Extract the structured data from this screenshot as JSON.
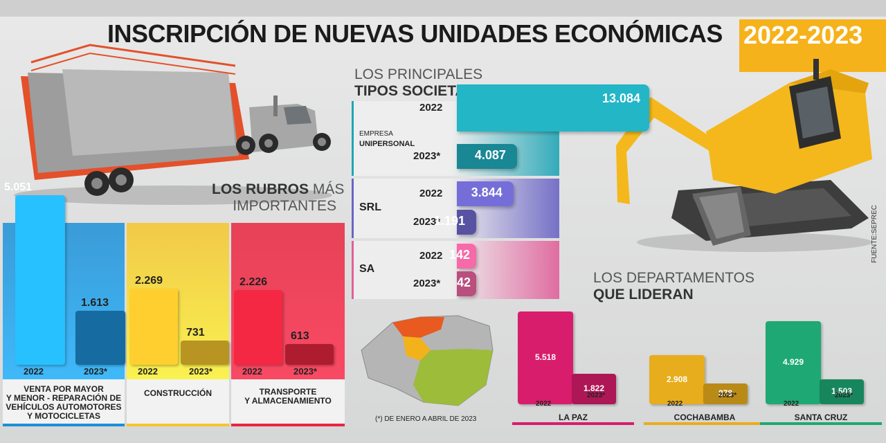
{
  "header": {
    "title": "INSCRIPCIÓN DE NUEVAS UNIDADES ECONÓMICAS",
    "years": "2022-2023"
  },
  "source": "FUENTE:SEPREC",
  "footnote": "(*) DE ENERO A ABRIL DE 2023",
  "colors": {
    "yellow_accent": "#f6b21b",
    "blue": "#1d8fd6",
    "yellow": "#f5c52d",
    "red": "#e8263f",
    "teal": "#1fa5b5",
    "purple": "#6a64c4",
    "pink": "#e0609a",
    "magenta": "#d81d6c",
    "mustard": "#e8ad1c",
    "green": "#1ea874"
  },
  "illustrations": [
    "tanker-truck-illustration",
    "excavator-illustration",
    "bolivia-map-illustration"
  ],
  "chart_data": [
    {
      "type": "bar",
      "title_bold": "LOS RUBROS",
      "title_light_1": "MÁS",
      "title_light_2": "IMPORTANTES",
      "series_labels": [
        "2022",
        "2023*"
      ],
      "groups": [
        {
          "label_lines": [
            "VENTA POR MAYOR",
            "Y MENOR - REPARACIÓN DE",
            "VEHÍCULOS AUTOMOTORES",
            "Y MOTOCICLETAS"
          ],
          "values": [
            5051,
            1613
          ],
          "value_labels": [
            "5.051",
            "1.613"
          ]
        },
        {
          "label_lines": [
            "CONSTRUCCIÓN"
          ],
          "values": [
            2269,
            731
          ],
          "value_labels": [
            "2.269",
            "731"
          ]
        },
        {
          "label_lines": [
            "TRANSPORTE",
            "Y ALMACENAMIENTO"
          ],
          "values": [
            2226,
            613
          ],
          "value_labels": [
            "2.226",
            "613"
          ]
        }
      ]
    },
    {
      "type": "bar",
      "orientation": "horizontal",
      "title_light": "LOS PRINCIPALES",
      "title_bold": "TIPOS SOCIETARIOS",
      "series_labels": [
        "2022",
        "2023*"
      ],
      "groups": [
        {
          "label_small": "EMPRESA",
          "label_bold": "UNIPERSONAL",
          "values": [
            13084,
            4087
          ],
          "value_labels": [
            "13.084",
            "4.087"
          ]
        },
        {
          "label_small": "",
          "label_bold": "SRL",
          "values": [
            3844,
            1191
          ],
          "value_labels": [
            "3.844",
            "1.191"
          ]
        },
        {
          "label_small": "",
          "label_bold": "SA",
          "values": [
            142,
            42
          ],
          "value_labels": [
            "142",
            "42"
          ]
        }
      ]
    },
    {
      "type": "bar",
      "title_light": "LOS DEPARTAMENTOS",
      "title_bold": "QUE LIDERAN",
      "series_labels": [
        "2022",
        "2023*"
      ],
      "groups": [
        {
          "label": "LA PAZ",
          "values": [
            5518,
            1822
          ],
          "value_labels": [
            "5.518",
            "1.822"
          ]
        },
        {
          "label": "COCHABAMBA",
          "values": [
            2908,
            878
          ],
          "value_labels": [
            "2.908",
            "878"
          ]
        },
        {
          "label": "SANTA CRUZ",
          "values": [
            4929,
            1503
          ],
          "value_labels": [
            "4.929",
            "1.503"
          ]
        }
      ]
    }
  ]
}
